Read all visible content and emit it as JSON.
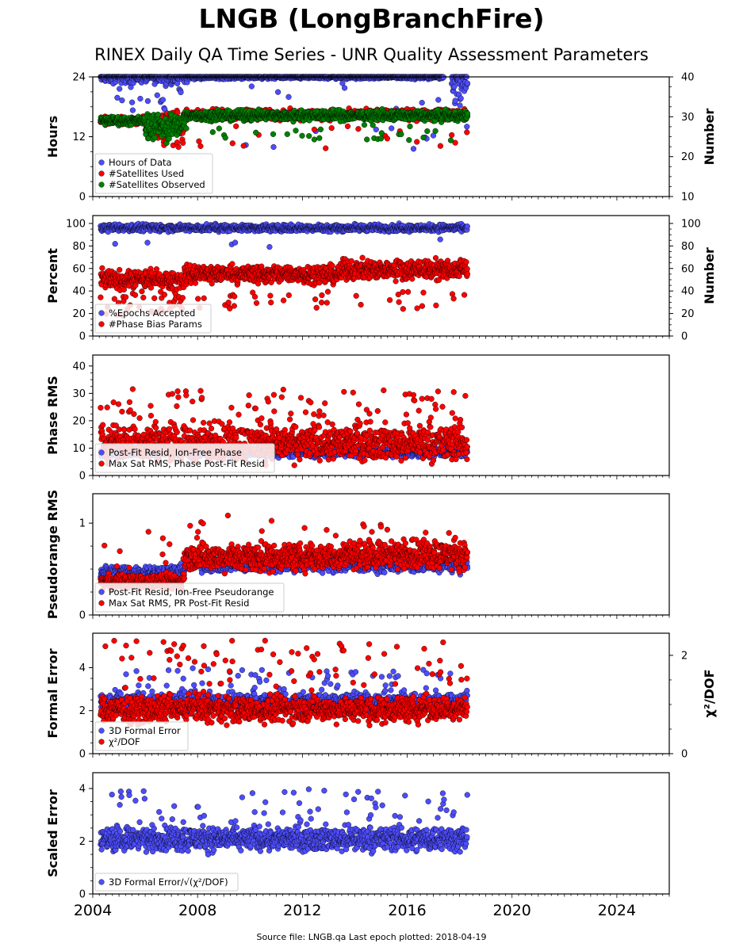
{
  "title": "LNGB (LongBranchFire)",
  "subtitle": "RINEX Daily QA Time Series - UNR Quality Assessment Parameters",
  "footer": "Source file: LNGB.qa Last epoch plotted: 2018-04-19",
  "x_axis": {
    "range": [
      2004.0,
      2026.0
    ],
    "tick_labels": [
      "2004",
      "2008",
      "2012",
      "2016",
      "2020",
      "2024"
    ],
    "tick_values": [
      2004,
      2008,
      2012,
      2016,
      2020,
      2024
    ]
  },
  "chart_data": [
    {
      "type": "scatter",
      "ylabel": "Hours",
      "ylim": [
        0,
        24
      ],
      "yticks": [
        0,
        12,
        24
      ],
      "y2label": "Number",
      "y2lim": [
        10,
        40
      ],
      "y2ticks": [
        10,
        20,
        30,
        40
      ],
      "series": [
        {
          "name": "Hours of Data",
          "axis": "left",
          "color": "#4d4dff",
          "segments": [
            {
              "x": [
                2004.3,
                2007.6
              ],
              "y": 24,
              "spread": 0.6,
              "outliers": 0.08,
              "outlier_range": [
                17,
                24
              ]
            },
            {
              "x": [
                2007.6,
                2017.4
              ],
              "y": 24,
              "spread": 0.2,
              "outliers": 0.03,
              "outlier_range": [
                9,
                24
              ]
            },
            {
              "x": [
                2017.7,
                2018.3
              ],
              "y": 23.5,
              "spread": 1.2,
              "outliers": 0.15,
              "outlier_range": [
                13,
                24
              ]
            }
          ]
        },
        {
          "name": "#Satellites Used",
          "axis": "right",
          "color": "#ff0000",
          "segments": [
            {
              "x": [
                2004.3,
                2006.0
              ],
              "y": 29.0,
              "spread": 0.5
            },
            {
              "x": [
                2006.0,
                2007.5
              ],
              "y": 28.2,
              "spread": 1.5,
              "outliers": 0.1,
              "outlier_range": [
                22,
                28
              ]
            },
            {
              "x": [
                2007.5,
                2018.3
              ],
              "y": 30.5,
              "spread": 0.6,
              "outliers": 0.02,
              "outlier_range": [
                22,
                28
              ]
            }
          ]
        },
        {
          "name": "#Satellites Observed",
          "axis": "right",
          "color": "#008000",
          "segments": [
            {
              "x": [
                2004.3,
                2006.0
              ],
              "y": 29.0,
              "spread": 0.5
            },
            {
              "x": [
                2006.0,
                2007.5
              ],
              "y": 28.0,
              "spread": 1.5,
              "outliers": 0.1,
              "outlier_range": [
                23,
                27
              ]
            },
            {
              "x": [
                2007.5,
                2018.3
              ],
              "y": 30.3,
              "spread": 0.6,
              "outliers": 0.02,
              "outlier_range": [
                24,
                28
              ]
            }
          ]
        }
      ]
    },
    {
      "type": "scatter",
      "ylabel": "Percent",
      "ylim": [
        0,
        107
      ],
      "yticks": [
        0,
        20,
        40,
        60,
        80,
        100
      ],
      "y2label": "Number",
      "y2lim": [
        0,
        107
      ],
      "y2ticks": [
        0,
        20,
        40,
        60,
        80,
        100
      ],
      "series": [
        {
          "name": "%Epochs Accepted",
          "axis": "left",
          "color": "#4d4dff",
          "segments": [
            {
              "x": [
                2004.3,
                2018.3
              ],
              "y": 96,
              "spread": 1.5,
              "outliers": 0.01,
              "outlier_range": [
                72,
                88
              ]
            }
          ]
        },
        {
          "name": "#Phase Bias Params",
          "axis": "right",
          "color": "#ff0000",
          "segments": [
            {
              "x": [
                2004.3,
                2007.5
              ],
              "y": 50,
              "spread": 4,
              "outliers": 0.1,
              "outlier_range": [
                18,
                40
              ]
            },
            {
              "x": [
                2007.5,
                2013.5
              ],
              "y": 55,
              "spread": 4,
              "outliers": 0.04,
              "outlier_range": [
                24,
                40
              ]
            },
            {
              "x": [
                2013.5,
                2018.3
              ],
              "y": 59,
              "spread": 4,
              "outliers": 0.04,
              "outlier_range": [
                23,
                45
              ]
            }
          ]
        }
      ]
    },
    {
      "type": "scatter",
      "ylabel": "Phase RMS",
      "ylim": [
        0,
        44
      ],
      "yticks": [
        0,
        10,
        20,
        30,
        40
      ],
      "series": [
        {
          "name": "Post-Fit Resid, Ion-Free Phase",
          "axis": "left",
          "color": "#4d4dff",
          "segments": [
            {
              "x": [
                2004.3,
                2018.3
              ],
              "y": 8.5,
              "spread": 0.8
            }
          ]
        },
        {
          "name": "Max Sat RMS, Phase Post-Fit Resid",
          "axis": "left",
          "color": "#ff0000",
          "segments": [
            {
              "x": [
                2004.3,
                2018.3
              ],
              "y": 12,
              "spread": 3,
              "outliers": 0.08,
              "outlier_range": [
                18,
                32
              ]
            }
          ]
        }
      ]
    },
    {
      "type": "scatter",
      "ylabel": "Pseudorange RMS",
      "ylim": [
        0,
        1.32
      ],
      "yticks": [
        0,
        1
      ],
      "series": [
        {
          "name": "Post-Fit Resid, Ion-Free Pseudorange",
          "axis": "left",
          "color": "#4d4dff",
          "segments": [
            {
              "x": [
                2004.3,
                2007.5
              ],
              "y": 0.46,
              "spread": 0.04
            },
            {
              "x": [
                2007.5,
                2018.3
              ],
              "y": 0.55,
              "spread": 0.04
            }
          ]
        },
        {
          "name": "Max Sat RMS, PR Post-Fit Resid",
          "axis": "left",
          "color": "#ff0000",
          "segments": [
            {
              "x": [
                2004.3,
                2007.5
              ],
              "y": 0.36,
              "spread": 0.04,
              "outliers": 0.03,
              "outlier_range": [
                0.5,
                0.95
              ]
            },
            {
              "x": [
                2007.5,
                2013.5
              ],
              "y": 0.63,
              "spread": 0.07,
              "outliers": 0.03,
              "outlier_range": [
                0.8,
                1.1
              ]
            },
            {
              "x": [
                2013.5,
                2018.3
              ],
              "y": 0.66,
              "spread": 0.07,
              "outliers": 0.03,
              "outlier_range": [
                0.8,
                1.0
              ]
            }
          ]
        }
      ]
    },
    {
      "type": "scatter",
      "ylabel": "Formal Error",
      "ylim": [
        0,
        5.6
      ],
      "yticks": [
        0,
        2,
        4
      ],
      "y2label": "χ²/DOF",
      "y2lim": [
        0,
        2.45
      ],
      "y2ticks": [
        0,
        2
      ],
      "series": [
        {
          "name": "3D Formal Error",
          "axis": "left",
          "color": "#4d4dff",
          "segments": [
            {
              "x": [
                2004.3,
                2018.3
              ],
              "y": 2.4,
              "spread": 0.2,
              "outliers": 0.05,
              "outlier_range": [
                2.8,
                4.0
              ]
            }
          ]
        },
        {
          "name": "χ²/DOF",
          "axis": "right",
          "color": "#ff0000",
          "segments": [
            {
              "x": [
                2004.3,
                2018.3
              ],
              "y": 0.9,
              "spread": 0.12,
              "outliers": 0.06,
              "outlier_range": [
                1.2,
                2.3
              ]
            }
          ]
        }
      ]
    },
    {
      "type": "scatter",
      "ylabel": "Scaled Error",
      "ylim": [
        0,
        4.6
      ],
      "yticks": [
        0,
        2,
        4
      ],
      "series": [
        {
          "name": "3D Formal Error/√(χ²/DOF)",
          "axis": "left",
          "color": "#4d4dff",
          "segments": [
            {
              "x": [
                2004.3,
                2018.3
              ],
              "y": 2.1,
              "spread": 0.22,
              "outliers": 0.05,
              "outlier_range": [
                2.7,
                4.0
              ]
            }
          ]
        }
      ]
    }
  ]
}
